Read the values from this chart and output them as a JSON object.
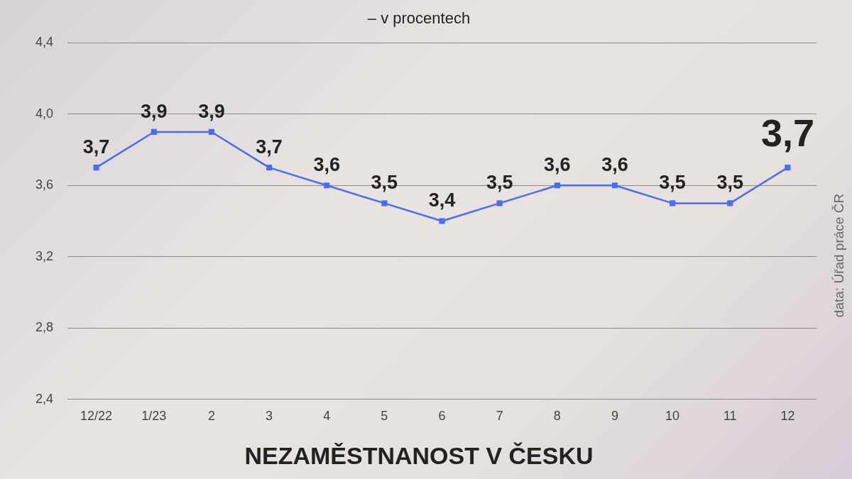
{
  "chart_data": {
    "type": "line",
    "title": "NEZAMĚSTNANOST V ČESKU",
    "subtitle": "– v procentech",
    "categories": [
      "12/22",
      "1/23",
      "2",
      "3",
      "4",
      "5",
      "6",
      "7",
      "8",
      "9",
      "10",
      "11",
      "12"
    ],
    "series": [
      {
        "color": "#4a6cf4",
        "values": [
          3.7,
          3.9,
          3.9,
          3.7,
          3.6,
          3.5,
          3.4,
          3.5,
          3.6,
          3.6,
          3.5,
          3.5,
          3.7
        ],
        "value_labels": [
          "3,7",
          "3,9",
          "3,9",
          "3,7",
          "3,6",
          "3,5",
          "3,4",
          "3,5",
          "3,6",
          "3,6",
          "3,5",
          "3,5",
          "3,7"
        ]
      }
    ],
    "ylim": [
      2.4,
      4.4
    ],
    "yticks": [
      {
        "value": 2.4,
        "label": "2,4"
      },
      {
        "value": 2.8,
        "label": "2,8"
      },
      {
        "value": 3.2,
        "label": "3,2"
      },
      {
        "value": 3.6,
        "label": "3,6"
      },
      {
        "value": 4.0,
        "label": "4,0"
      },
      {
        "value": 4.4,
        "label": "4,4"
      }
    ],
    "grid": "y",
    "marker": "square",
    "line_style": "solid",
    "legend": false,
    "annotations": [
      "data: Úřad práce ČR"
    ]
  }
}
